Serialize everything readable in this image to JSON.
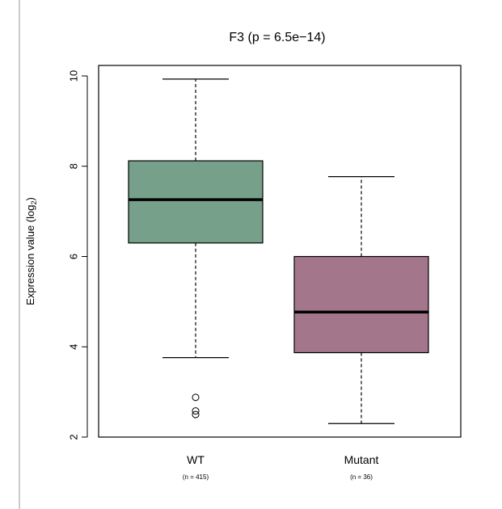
{
  "chart_data": {
    "type": "box",
    "title": "F3 (p = 6.5e−14)",
    "ylabel": "Expression value (log",
    "ylabel_sub": "2",
    "ylabel_end": ")",
    "ylim": [
      1.92,
      10.2
    ],
    "yticks": [
      2,
      4,
      6,
      8,
      10
    ],
    "ytick_labels": [
      "2",
      "4",
      "6",
      "8",
      "10"
    ],
    "categories": [
      "WT",
      "Mutant"
    ],
    "counts": [
      "(n = 415)",
      "(n = 36)"
    ],
    "colors": [
      "#77a08a",
      "#a3768b"
    ],
    "grid": false,
    "boxes": [
      {
        "min": 3.76,
        "q1": 6.3,
        "median": 7.26,
        "q3": 8.12,
        "max": 9.93,
        "outliers": [
          2.88,
          2.58,
          2.5
        ]
      },
      {
        "min": 2.3,
        "q1": 3.87,
        "median": 4.77,
        "q3": 6.0,
        "max": 7.77,
        "outliers": []
      }
    ]
  }
}
